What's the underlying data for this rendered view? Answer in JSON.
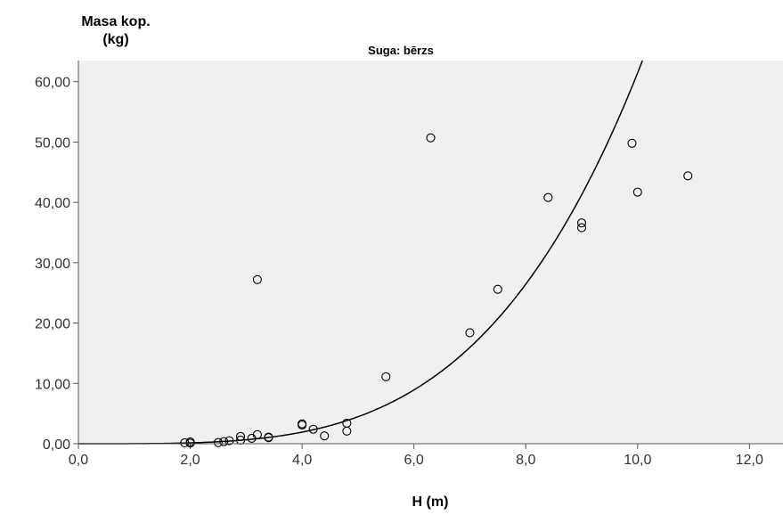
{
  "chart_data": {
    "type": "scatter",
    "title": "Suga: bērzs",
    "xlabel": "H (m)",
    "ylabel": [
      "Masa kop.",
      "(kg)"
    ],
    "xlim": [
      0,
      12.6
    ],
    "ylim": [
      0,
      63.5
    ],
    "x_ticks": [
      0,
      2,
      4,
      6,
      8,
      10,
      12
    ],
    "x_tick_labels": [
      "0,0",
      "2,0",
      "4,0",
      "6,0",
      "8,0",
      "10,0",
      "12,0"
    ],
    "y_ticks": [
      0,
      10,
      20,
      30,
      40,
      50,
      60
    ],
    "y_tick_labels": [
      "0,00",
      "10,00",
      "20,00",
      "30,00",
      "40,00",
      "50,00",
      "60,00"
    ],
    "grid": false,
    "colors": {
      "plot_background": "#f0f0f0",
      "marker": "#000000",
      "curve": "#000000"
    },
    "points": [
      {
        "x": 1.9,
        "y": 0.15
      },
      {
        "x": 2.0,
        "y": 0.3
      },
      {
        "x": 2.0,
        "y": 0.1
      },
      {
        "x": 2.5,
        "y": 0.2
      },
      {
        "x": 2.6,
        "y": 0.35
      },
      {
        "x": 2.7,
        "y": 0.5
      },
      {
        "x": 2.9,
        "y": 1.2
      },
      {
        "x": 2.9,
        "y": 0.6
      },
      {
        "x": 3.1,
        "y": 0.9
      },
      {
        "x": 3.2,
        "y": 1.5
      },
      {
        "x": 3.2,
        "y": 27.2
      },
      {
        "x": 3.4,
        "y": 1.1
      },
      {
        "x": 3.4,
        "y": 1.0
      },
      {
        "x": 4.0,
        "y": 3.3
      },
      {
        "x": 4.0,
        "y": 3.1
      },
      {
        "x": 4.2,
        "y": 2.4
      },
      {
        "x": 4.4,
        "y": 1.3
      },
      {
        "x": 4.8,
        "y": 3.4
      },
      {
        "x": 4.8,
        "y": 2.1
      },
      {
        "x": 5.5,
        "y": 11.1
      },
      {
        "x": 6.3,
        "y": 50.7
      },
      {
        "x": 7.0,
        "y": 18.4
      },
      {
        "x": 7.5,
        "y": 25.6
      },
      {
        "x": 8.4,
        "y": 40.8
      },
      {
        "x": 9.0,
        "y": 36.6
      },
      {
        "x": 9.0,
        "y": 35.8
      },
      {
        "x": 9.9,
        "y": 49.8
      },
      {
        "x": 10.0,
        "y": 41.7
      },
      {
        "x": 10.9,
        "y": 44.4
      }
    ],
    "fit": {
      "type": "power",
      "coefficient": 0.0102,
      "exponent": 3.78
    }
  }
}
